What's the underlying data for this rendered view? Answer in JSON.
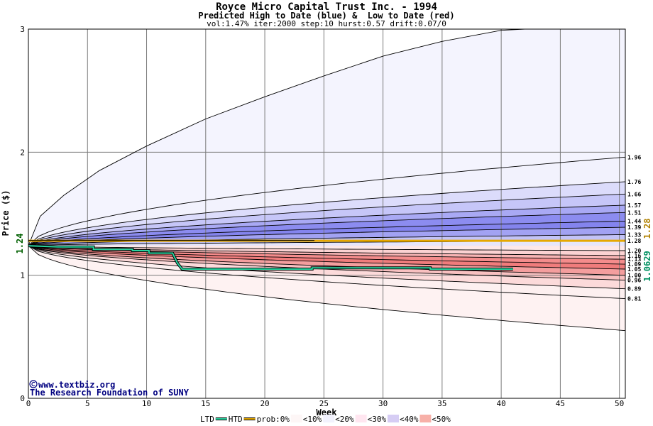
{
  "chart_data": {
    "type": "area",
    "title": "Royce Micro Capital Trust Inc. - 1994",
    "subtitle": "Predicted High to Date (blue) &  Low to Date (red)",
    "params": "vol:1.47% iter:2000 step:10 hurst:0.57 drift:0.07/0",
    "xlabel": "Week",
    "ylabel": "Price ($)",
    "xlim": [
      0,
      50.5
    ],
    "ylim": [
      0,
      3
    ],
    "xticks": [
      "0",
      "5",
      "10",
      "15",
      "20",
      "25",
      "30",
      "35",
      "40",
      "45",
      "50"
    ],
    "yticks": [
      "0",
      "1",
      "2",
      "3"
    ],
    "grid": true,
    "start_price": 1.24,
    "start_label": "1.24",
    "upper_boundaries": [
      {
        "label": "1.96",
        "end": 1.96,
        "fill": "#f2f2fd"
      },
      {
        "label": "1.76",
        "end": 1.76,
        "fill": "#dcdcfb"
      },
      {
        "label": "1.66",
        "end": 1.66,
        "fill": "#c6c6f8"
      },
      {
        "label": "1.57",
        "end": 1.57,
        "fill": "#a9a9f4"
      },
      {
        "label": "1.51",
        "end": 1.51,
        "fill": "#8c8cf0"
      },
      {
        "label": "1.44",
        "end": 1.44,
        "fill": "#8484ee"
      },
      {
        "label": "1.39",
        "end": 1.39,
        "fill": "#a2a2f3"
      },
      {
        "label": "1.33",
        "end": 1.33,
        "fill": "#c3c3f7"
      },
      {
        "label": "1.28",
        "end": 1.28,
        "fill": "#e6e6fb"
      }
    ],
    "lower_boundaries": [
      {
        "label": "1.20",
        "end": 1.2,
        "fill": "#fde8e8"
      },
      {
        "label": "1.16",
        "end": 1.16,
        "fill": "#fbd2d2"
      },
      {
        "label": "1.13",
        "end": 1.13,
        "fill": "#f8b4b4"
      },
      {
        "label": "1.09",
        "end": 1.09,
        "fill": "#f48c8c"
      },
      {
        "label": "1.05",
        "end": 1.05,
        "fill": "#f07c7c"
      },
      {
        "label": "1.00",
        "end": 1.0,
        "fill": "#f49e9e"
      },
      {
        "label": "0.96",
        "end": 0.96,
        "fill": "#f8c0c0"
      },
      {
        "label": "0.89",
        "end": 0.89,
        "fill": "#fcdada"
      },
      {
        "label": "0.81",
        "end": 0.81,
        "fill": "#fdf0f0"
      }
    ],
    "outer_high": {
      "values_x": [
        0,
        1,
        3,
        6,
        10,
        15,
        20,
        25,
        30,
        35,
        40,
        42
      ],
      "values_y": [
        1.24,
        1.48,
        1.65,
        1.85,
        2.05,
        2.27,
        2.45,
        2.62,
        2.78,
        2.9,
        2.99,
        3.0
      ]
    },
    "outer_low": {
      "end": 0.55
    },
    "series": [
      {
        "name": "LTD",
        "color": "#000000",
        "x": [
          0,
          2.5,
          5.5,
          5.5,
          8.8,
          8.8,
          10.2,
          10.2,
          12.2,
          12.6,
          13,
          24,
          24,
          34,
          34,
          41
        ],
        "y": [
          1.24,
          1.23,
          1.23,
          1.21,
          1.21,
          1.2,
          1.2,
          1.18,
          1.18,
          1.1,
          1.05,
          1.05,
          1.06,
          1.06,
          1.05,
          1.05
        ]
      },
      {
        "name": "HTD",
        "color": "#2ad4a0",
        "x": [
          0,
          2.5,
          5.5,
          5.5,
          8.8,
          8.8,
          10.2,
          10.2,
          12.2,
          12.6,
          13,
          24,
          24,
          34,
          34,
          41
        ],
        "y": [
          1.24,
          1.23,
          1.23,
          1.21,
          1.21,
          1.2,
          1.2,
          1.18,
          1.18,
          1.1,
          1.05,
          1.05,
          1.06,
          1.06,
          1.05,
          1.05
        ]
      },
      {
        "name": "prob",
        "color": "#e6a800",
        "x": [
          0,
          50.5
        ],
        "y": [
          1.28,
          1.28
        ]
      }
    ],
    "current_htd_label": "1.0629",
    "current_prob_label": "1.28",
    "legend": [
      "LTD",
      "HTD",
      "prob:0%",
      "<10%",
      "<20%",
      "<30%",
      "<40%",
      "<50%"
    ],
    "legend_colors": [
      "#fdf6f6",
      "#f2f2fd",
      "#ffe6f0",
      "#d6cdf4",
      "#f7b0a8",
      "#b8b4f2",
      "#f09090",
      "#8c8cf0"
    ],
    "credit_line1": "www.textbiz.org",
    "credit_line2": "The Research Foundation of SUNY"
  }
}
